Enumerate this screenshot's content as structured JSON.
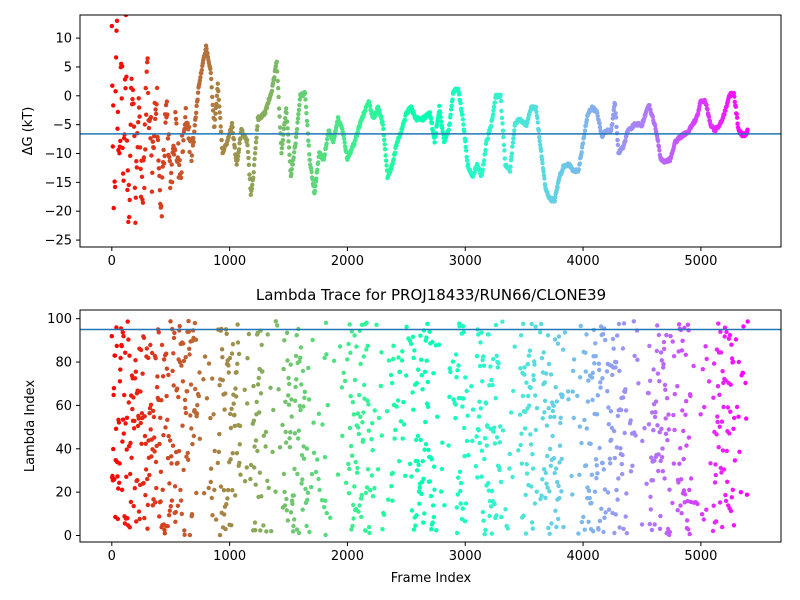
{
  "chart_data": [
    {
      "type": "scatter",
      "title": "",
      "xlabel": "",
      "ylabel": "ΔG (kT)",
      "xlim": [
        -270,
        5680
      ],
      "ylim": [
        -26.2,
        14
      ],
      "xticks": [
        0,
        1000,
        2000,
        3000,
        4000,
        5000
      ],
      "yticks": [
        -25,
        -20,
        -15,
        -10,
        -5,
        0,
        5,
        10
      ],
      "grid": false,
      "colormap": "rainbow",
      "color_by": "frame_index",
      "hline": {
        "y": -6.6,
        "color": "#1f77b4"
      },
      "n_points": 5400,
      "trace_keypoints": [
        [
          0,
          14
        ],
        [
          20,
          -25
        ],
        [
          40,
          14
        ],
        [
          60,
          -20
        ],
        [
          80,
          8
        ],
        [
          100,
          -10
        ],
        [
          120,
          12
        ],
        [
          140,
          -24
        ],
        [
          170,
          6
        ],
        [
          200,
          -18
        ],
        [
          230,
          0
        ],
        [
          260,
          -21
        ],
        [
          300,
          5
        ],
        [
          340,
          -12
        ],
        [
          380,
          2
        ],
        [
          420,
          -22
        ],
        [
          460,
          0
        ],
        [
          500,
          -16
        ],
        [
          540,
          -6
        ],
        [
          580,
          -14
        ],
        [
          620,
          -3
        ],
        [
          680,
          -10
        ],
        [
          740,
          2
        ],
        [
          800,
          8.5
        ],
        [
          840,
          4
        ],
        [
          870,
          -6
        ],
        [
          900,
          2
        ],
        [
          940,
          -10
        ],
        [
          980,
          -8
        ],
        [
          1020,
          -5
        ],
        [
          1060,
          -12
        ],
        [
          1100,
          -6
        ],
        [
          1150,
          -8
        ],
        [
          1180,
          -17
        ],
        [
          1200,
          -14
        ],
        [
          1240,
          -4
        ],
        [
          1300,
          -3
        ],
        [
          1360,
          1
        ],
        [
          1400,
          6
        ],
        [
          1440,
          -10
        ],
        [
          1480,
          -2
        ],
        [
          1520,
          -14
        ],
        [
          1560,
          -8
        ],
        [
          1600,
          0
        ],
        [
          1640,
          0.5
        ],
        [
          1680,
          -11
        ],
        [
          1720,
          -17
        ],
        [
          1760,
          -10
        ],
        [
          1800,
          -11
        ],
        [
          1840,
          -6
        ],
        [
          1880,
          -8
        ],
        [
          1920,
          -4
        ],
        [
          1960,
          -6
        ],
        [
          2000,
          -11
        ],
        [
          2060,
          -8
        ],
        [
          2120,
          -4
        ],
        [
          2180,
          -1
        ],
        [
          2220,
          -4
        ],
        [
          2260,
          -2
        ],
        [
          2300,
          -5
        ],
        [
          2340,
          -14
        ],
        [
          2380,
          -12
        ],
        [
          2420,
          -8
        ],
        [
          2460,
          -6
        ],
        [
          2500,
          -3
        ],
        [
          2540,
          -2
        ],
        [
          2580,
          -4
        ],
        [
          2640,
          -4
        ],
        [
          2700,
          -3
        ],
        [
          2740,
          -8
        ],
        [
          2780,
          -2
        ],
        [
          2820,
          -8
        ],
        [
          2860,
          -6
        ],
        [
          2900,
          1
        ],
        [
          2940,
          1
        ],
        [
          2980,
          -4
        ],
        [
          3020,
          -12
        ],
        [
          3060,
          -14
        ],
        [
          3100,
          -12
        ],
        [
          3140,
          -14
        ],
        [
          3180,
          -8
        ],
        [
          3220,
          -5
        ],
        [
          3260,
          0
        ],
        [
          3300,
          0
        ],
        [
          3340,
          -12
        ],
        [
          3380,
          -13
        ],
        [
          3420,
          -5
        ],
        [
          3460,
          -4
        ],
        [
          3520,
          -5
        ],
        [
          3560,
          -2
        ],
        [
          3600,
          -2
        ],
        [
          3640,
          -9
        ],
        [
          3680,
          -16
        ],
        [
          3720,
          -18
        ],
        [
          3760,
          -18
        ],
        [
          3800,
          -14
        ],
        [
          3840,
          -12
        ],
        [
          3880,
          -12
        ],
        [
          3920,
          -13
        ],
        [
          3960,
          -13
        ],
        [
          4000,
          -8
        ],
        [
          4040,
          -3
        ],
        [
          4080,
          -2
        ],
        [
          4120,
          -3
        ],
        [
          4160,
          -7
        ],
        [
          4200,
          -6
        ],
        [
          4240,
          -6
        ],
        [
          4270,
          -1
        ],
        [
          4300,
          -10
        ],
        [
          4340,
          -9
        ],
        [
          4380,
          -6
        ],
        [
          4440,
          -5
        ],
        [
          4500,
          -5
        ],
        [
          4560,
          -1.5
        ],
        [
          4620,
          -6
        ],
        [
          4660,
          -11
        ],
        [
          4700,
          -11.5
        ],
        [
          4740,
          -11
        ],
        [
          4780,
          -8
        ],
        [
          4840,
          -7
        ],
        [
          4900,
          -6
        ],
        [
          4960,
          -4
        ],
        [
          5000,
          -1
        ],
        [
          5040,
          -1
        ],
        [
          5080,
          -5
        ],
        [
          5120,
          -6
        ],
        [
          5160,
          -5
        ],
        [
          5200,
          -3
        ],
        [
          5240,
          0
        ],
        [
          5280,
          0.5
        ],
        [
          5320,
          -6
        ],
        [
          5360,
          -7
        ],
        [
          5400,
          -6
        ]
      ]
    },
    {
      "type": "scatter",
      "title": "Lambda Trace for PROJ18433/RUN66/CLONE39",
      "xlabel": "Frame Index",
      "ylabel": "Lambda Index",
      "xlim": [
        -270,
        5680
      ],
      "ylim": [
        -3,
        104
      ],
      "xticks": [
        0,
        1000,
        2000,
        3000,
        4000,
        5000
      ],
      "yticks": [
        0,
        20,
        40,
        60,
        80,
        100
      ],
      "grid": false,
      "colormap": "rainbow",
      "color_by": "frame_index",
      "hline": {
        "y": 95,
        "color": "#1f77b4"
      },
      "n_points": 5400,
      "value_range": [
        0,
        99
      ]
    }
  ]
}
